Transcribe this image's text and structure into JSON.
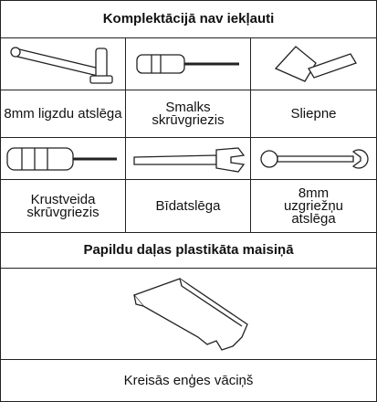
{
  "header": {
    "title": "Komplektācijā nav iekļauti"
  },
  "tools": [
    {
      "label": "8mm ligzdu atslēga"
    },
    {
      "label": "Smalks skrūvgriezis"
    },
    {
      "label": "Sliepne"
    },
    {
      "label": "Krustveida skrūvgriezis"
    },
    {
      "label": "Bīdatslēga"
    },
    {
      "label": "8mm uzgriežņu atslēga"
    }
  ],
  "section": {
    "title": "Papildu daļas plastikāta maisiņā"
  },
  "part": {
    "label": "Kreisās enģes vāciņš"
  }
}
